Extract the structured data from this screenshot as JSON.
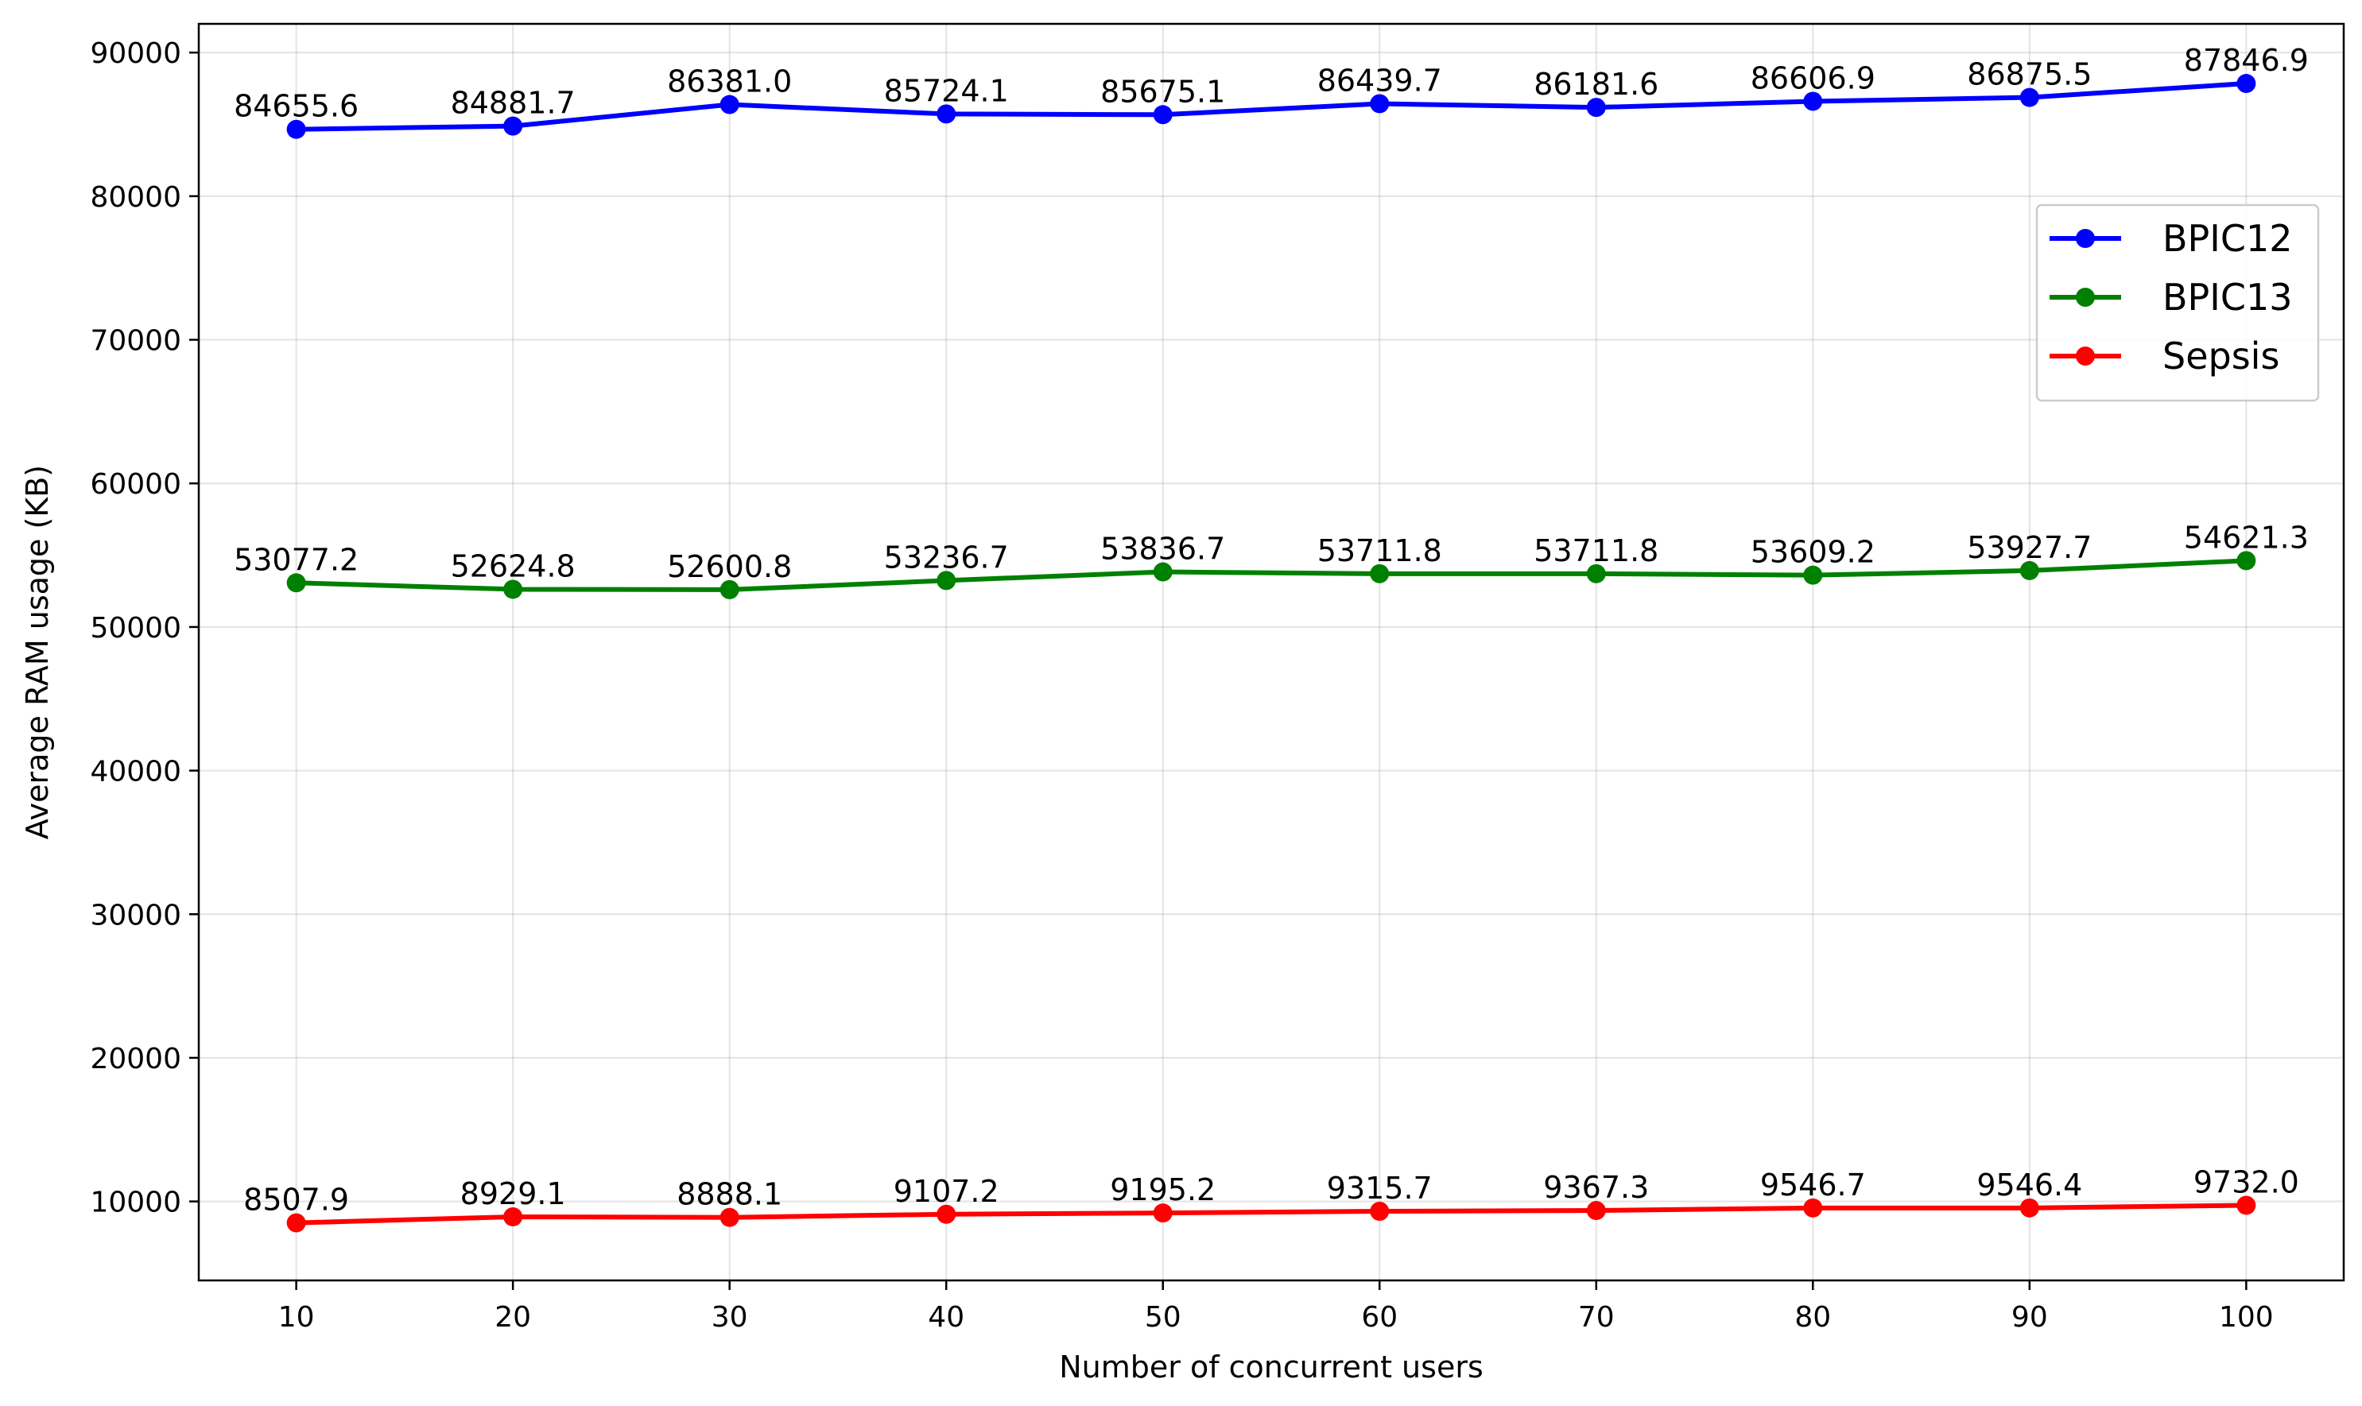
{
  "chart_data": {
    "type": "line",
    "title": "",
    "xlabel": "Number of concurrent users",
    "ylabel": "Average RAM usage (KB)",
    "x": [
      10,
      20,
      30,
      40,
      50,
      60,
      70,
      80,
      90,
      100
    ],
    "x_ticks": [
      "10",
      "20",
      "30",
      "40",
      "50",
      "60",
      "70",
      "80",
      "90",
      "100"
    ],
    "y_ticks": [
      "10000",
      "20000",
      "30000",
      "40000",
      "50000",
      "60000",
      "70000",
      "80000",
      "90000"
    ],
    "xlim": [
      5.5,
      104.5
    ],
    "ylim": [
      4500,
      92000
    ],
    "grid": true,
    "legend_position": "upper-right",
    "series": [
      {
        "name": "BPIC12",
        "color": "#0000ff",
        "values": [
          84655.6,
          84881.7,
          86381.0,
          85724.1,
          85675.1,
          86439.7,
          86181.6,
          86606.9,
          86875.5,
          87846.9
        ],
        "labels": [
          "84655.6",
          "84881.7",
          "86381.0",
          "85724.1",
          "85675.1",
          "86439.7",
          "86181.6",
          "86606.9",
          "86875.5",
          "87846.9"
        ]
      },
      {
        "name": "BPIC13",
        "color": "#008000",
        "values": [
          53077.2,
          52624.8,
          52600.8,
          53236.7,
          53836.7,
          53711.8,
          53711.8,
          53609.2,
          53927.7,
          54621.3
        ],
        "labels": [
          "53077.2",
          "52624.8",
          "52600.8",
          "53236.7",
          "53836.7",
          "53711.8",
          "53711.8",
          "53609.2",
          "53927.7",
          "54621.3"
        ]
      },
      {
        "name": "Sepsis",
        "color": "#ff0000",
        "values": [
          8507.9,
          8929.1,
          8888.1,
          9107.2,
          9195.2,
          9315.7,
          9367.3,
          9546.7,
          9546.4,
          9732.0
        ],
        "labels": [
          "8507.9",
          "8929.1",
          "8888.1",
          "9107.2",
          "9195.2",
          "9315.7",
          "9367.3",
          "9546.7",
          "9546.4",
          "9732.0"
        ]
      }
    ]
  }
}
